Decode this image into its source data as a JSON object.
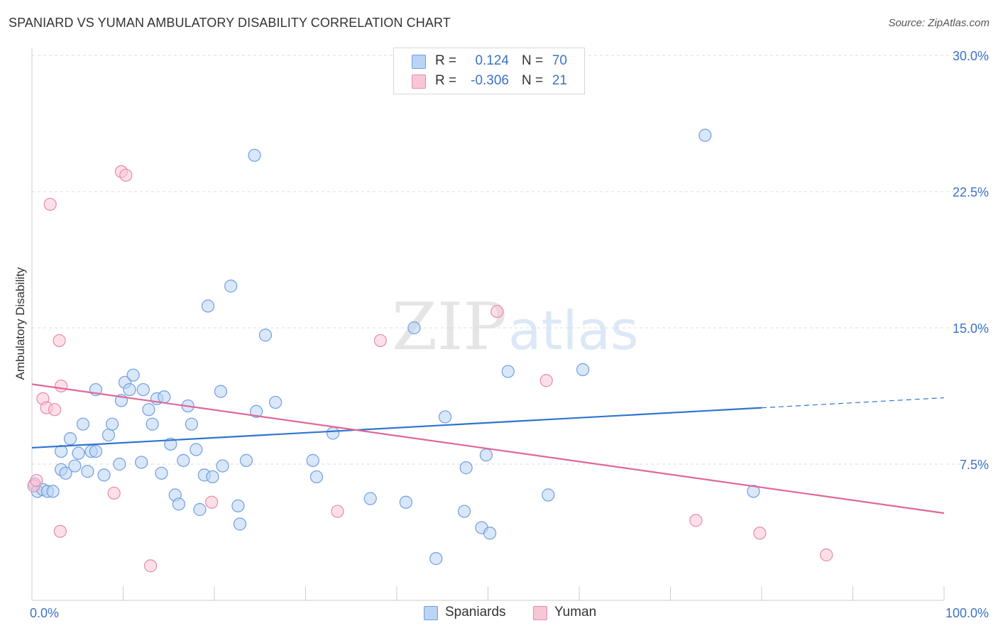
{
  "title": "SPANIARD VS YUMAN AMBULATORY DISABILITY CORRELATION CHART",
  "source": "Source: ZipAtlas.com",
  "watermark": {
    "zip": "ZIP",
    "atlas": "atlas"
  },
  "legend": {
    "r_label": "R =",
    "n_label": "N =",
    "rows": [
      {
        "r": "0.124",
        "n": "70",
        "color": "#b9d4f4",
        "border": "#6f9fe0"
      },
      {
        "r": "-0.306",
        "n": "21",
        "color": "#f9c6d5",
        "border": "#e88aa8"
      }
    ]
  },
  "colors": {
    "spaniards_fill": "#b9d4f4",
    "spaniards_stroke": "#6f9fe0",
    "spaniards_line": "#2f74d0",
    "yuman_fill": "#f9c6d5",
    "yuman_stroke": "#e88aa8",
    "yuman_line": "#e0679a",
    "tick_label": "#3b73c6",
    "grid": "#dcdcdc"
  },
  "chart_data": {
    "type": "scatter",
    "title": "SPANIARD VS YUMAN AMBULATORY DISABILITY CORRELATION CHART",
    "xlabel": "",
    "ylabel": "Ambulatory Disability",
    "xlim": [
      0,
      100
    ],
    "ylim": [
      0,
      30
    ],
    "x_tick_labels": [
      "0.0%",
      "100.0%"
    ],
    "y_ticks": [
      7.5,
      15.0,
      22.5,
      30.0
    ],
    "y_tick_labels": [
      "7.5%",
      "15.0%",
      "22.5%",
      "30.0%"
    ],
    "grid": "horizontal dashed",
    "legend_position": "top-center",
    "series": [
      {
        "name": "Spaniards",
        "trend": {
          "x": [
            0,
            80
          ],
          "y": [
            8.4,
            10.6
          ],
          "dashed_extension": {
            "x": [
              80,
              100
            ],
            "y": [
              10.6,
              11.15
            ]
          }
        },
        "points": [
          [
            0.3,
            6.4
          ],
          [
            0.6,
            6.0
          ],
          [
            1.2,
            6.1
          ],
          [
            1.7,
            6.0
          ],
          [
            2.3,
            6.0
          ],
          [
            3.2,
            7.2
          ],
          [
            3.2,
            8.2
          ],
          [
            3.7,
            7.0
          ],
          [
            4.2,
            8.9
          ],
          [
            4.7,
            7.4
          ],
          [
            5.1,
            8.1
          ],
          [
            5.6,
            9.7
          ],
          [
            6.1,
            7.1
          ],
          [
            6.5,
            8.2
          ],
          [
            7.0,
            8.2
          ],
          [
            7.0,
            11.6
          ],
          [
            7.9,
            6.9
          ],
          [
            8.4,
            9.1
          ],
          [
            8.8,
            9.7
          ],
          [
            9.6,
            7.5
          ],
          [
            9.8,
            11.0
          ],
          [
            10.2,
            12.0
          ],
          [
            10.7,
            11.6
          ],
          [
            11.1,
            12.4
          ],
          [
            12.0,
            7.6
          ],
          [
            12.2,
            11.6
          ],
          [
            12.8,
            10.5
          ],
          [
            13.2,
            9.7
          ],
          [
            13.7,
            11.1
          ],
          [
            14.2,
            7.0
          ],
          [
            14.5,
            11.2
          ],
          [
            15.2,
            8.6
          ],
          [
            15.7,
            5.8
          ],
          [
            16.1,
            5.3
          ],
          [
            16.6,
            7.7
          ],
          [
            17.1,
            10.7
          ],
          [
            17.5,
            9.7
          ],
          [
            18.0,
            8.3
          ],
          [
            18.4,
            5.0
          ],
          [
            18.9,
            6.9
          ],
          [
            19.3,
            16.2
          ],
          [
            19.8,
            6.8
          ],
          [
            20.7,
            11.5
          ],
          [
            20.9,
            7.4
          ],
          [
            21.8,
            17.3
          ],
          [
            22.6,
            5.2
          ],
          [
            22.8,
            4.2
          ],
          [
            23.5,
            7.7
          ],
          [
            24.4,
            24.5
          ],
          [
            24.6,
            10.4
          ],
          [
            25.6,
            14.6
          ],
          [
            26.7,
            10.9
          ],
          [
            30.8,
            7.7
          ],
          [
            31.2,
            6.8
          ],
          [
            33.0,
            9.2
          ],
          [
            37.1,
            5.6
          ],
          [
            41.0,
            5.4
          ],
          [
            41.9,
            15.0
          ],
          [
            44.3,
            2.3
          ],
          [
            45.3,
            10.1
          ],
          [
            47.4,
            4.9
          ],
          [
            47.6,
            7.3
          ],
          [
            49.3,
            4.0
          ],
          [
            49.8,
            8.0
          ],
          [
            50.2,
            3.7
          ],
          [
            52.2,
            12.6
          ],
          [
            56.6,
            5.8
          ],
          [
            60.4,
            12.7
          ],
          [
            73.8,
            25.6
          ],
          [
            79.1,
            6.0
          ]
        ]
      },
      {
        "name": "Yuman",
        "trend": {
          "x": [
            0,
            100
          ],
          "y": [
            11.9,
            4.8
          ]
        },
        "points": [
          [
            0.2,
            6.3
          ],
          [
            0.5,
            6.6
          ],
          [
            1.2,
            11.1
          ],
          [
            1.6,
            10.6
          ],
          [
            2.0,
            21.8
          ],
          [
            2.5,
            10.5
          ],
          [
            3.0,
            14.3
          ],
          [
            3.1,
            3.8
          ],
          [
            3.2,
            11.8
          ],
          [
            9.0,
            5.9
          ],
          [
            9.8,
            23.6
          ],
          [
            10.3,
            23.4
          ],
          [
            13.0,
            1.9
          ],
          [
            19.7,
            5.4
          ],
          [
            33.5,
            4.9
          ],
          [
            38.2,
            14.3
          ],
          [
            51.0,
            15.9
          ],
          [
            56.4,
            12.1
          ],
          [
            72.8,
            4.4
          ],
          [
            79.8,
            3.7
          ],
          [
            87.1,
            2.5
          ]
        ]
      }
    ]
  },
  "bottom_legend": [
    "Spaniards",
    "Yuman"
  ]
}
